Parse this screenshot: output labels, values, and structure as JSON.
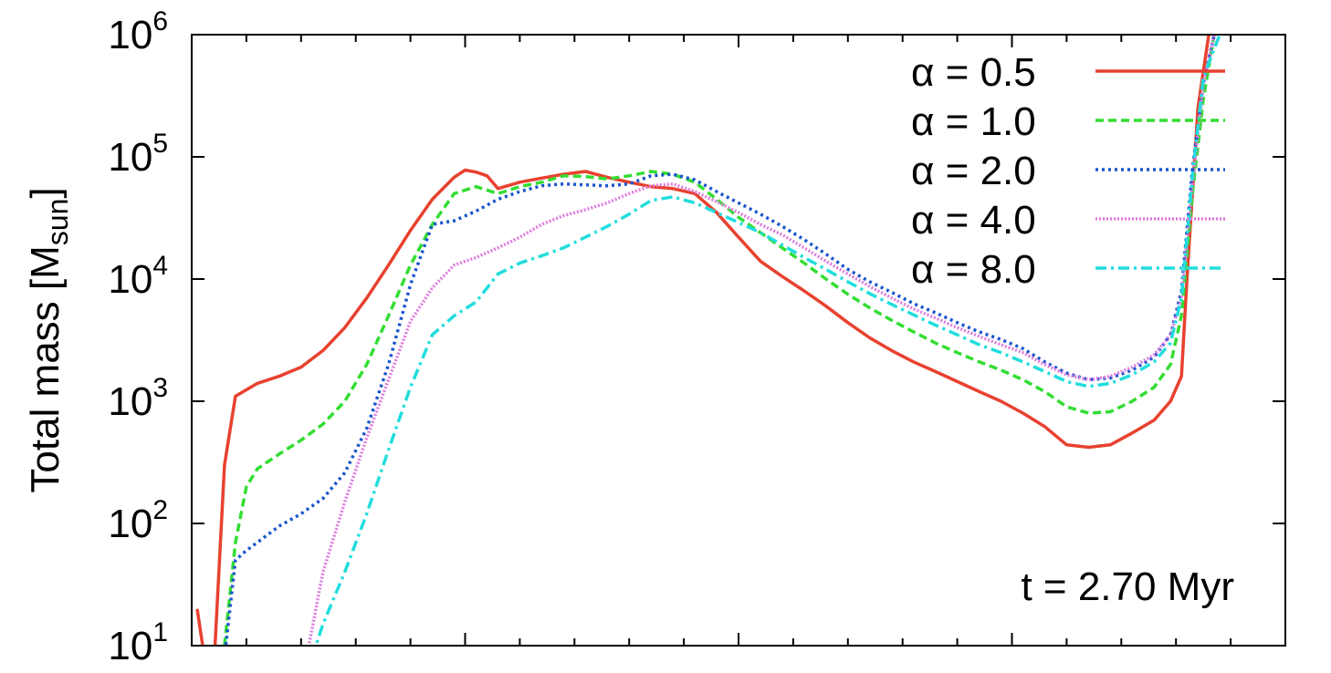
{
  "chart_data": {
    "type": "line",
    "title": "",
    "xlabel": "",
    "ylabel": {
      "main": "Total mass [M",
      "sub": "sun",
      "close": "]"
    },
    "yscale": "log",
    "ylim": [
      10,
      1000000
    ],
    "xlim": [
      0,
      10
    ],
    "grid": false,
    "legend_position": "top-right",
    "y_tick_labels": [
      {
        "value": 10,
        "base": "10",
        "exp": "1"
      },
      {
        "value": 100,
        "base": "10",
        "exp": "2"
      },
      {
        "value": 1000,
        "base": "10",
        "exp": "3"
      },
      {
        "value": 10000,
        "base": "10",
        "exp": "4"
      },
      {
        "value": 100000,
        "base": "10",
        "exp": "5"
      },
      {
        "value": 1000000,
        "base": "10",
        "exp": "6"
      }
    ],
    "x_major_ticks": [
      0,
      2.5,
      5,
      7.5,
      10
    ],
    "x_minor_ticks": [
      0.5,
      1,
      1.5,
      2,
      3,
      3.5,
      4,
      4.5,
      5.5,
      6,
      6.5,
      7,
      8,
      8.5,
      9,
      9.5
    ],
    "annotation": "t = 2.70 Myr",
    "series": [
      {
        "name": "α = 0.5",
        "color": "#e8412f",
        "dash": "solid",
        "points": [
          [
            0.05,
            20
          ],
          [
            0.1,
            10
          ],
          [
            0.2,
            6
          ],
          [
            0.3,
            300
          ],
          [
            0.4,
            1100
          ],
          [
            0.6,
            1400
          ],
          [
            0.8,
            1600
          ],
          [
            1.0,
            1900
          ],
          [
            1.2,
            2600
          ],
          [
            1.4,
            4000
          ],
          [
            1.6,
            7000
          ],
          [
            1.8,
            13000
          ],
          [
            2.0,
            25000
          ],
          [
            2.2,
            45000
          ],
          [
            2.4,
            68000
          ],
          [
            2.5,
            78000
          ],
          [
            2.6,
            75000
          ],
          [
            2.7,
            70000
          ],
          [
            2.8,
            55000
          ],
          [
            3.0,
            62000
          ],
          [
            3.2,
            67000
          ],
          [
            3.4,
            72000
          ],
          [
            3.6,
            76000
          ],
          [
            3.8,
            68000
          ],
          [
            4.0,
            62000
          ],
          [
            4.2,
            57000
          ],
          [
            4.4,
            55000
          ],
          [
            4.6,
            50000
          ],
          [
            4.8,
            35000
          ],
          [
            5.0,
            22000
          ],
          [
            5.2,
            14000
          ],
          [
            5.4,
            10500
          ],
          [
            5.6,
            8000
          ],
          [
            5.8,
            6000
          ],
          [
            6.0,
            4400
          ],
          [
            6.2,
            3300
          ],
          [
            6.4,
            2600
          ],
          [
            6.6,
            2100
          ],
          [
            6.8,
            1750
          ],
          [
            7.0,
            1450
          ],
          [
            7.2,
            1200
          ],
          [
            7.4,
            1000
          ],
          [
            7.6,
            800
          ],
          [
            7.8,
            620
          ],
          [
            8.0,
            440
          ],
          [
            8.2,
            420
          ],
          [
            8.4,
            440
          ],
          [
            8.6,
            550
          ],
          [
            8.8,
            700
          ],
          [
            8.95,
            1000
          ],
          [
            9.05,
            1600
          ],
          [
            9.1,
            10000
          ],
          [
            9.2,
            250000
          ],
          [
            9.3,
            1000000
          ]
        ]
      },
      {
        "name": "α = 1.0",
        "color": "#33dd33",
        "dash": "dashed",
        "points": [
          [
            0.3,
            10
          ],
          [
            0.4,
            70
          ],
          [
            0.5,
            200
          ],
          [
            0.6,
            280
          ],
          [
            0.8,
            370
          ],
          [
            1.0,
            480
          ],
          [
            1.2,
            650
          ],
          [
            1.4,
            1000
          ],
          [
            1.6,
            2000
          ],
          [
            1.8,
            5000
          ],
          [
            2.0,
            13000
          ],
          [
            2.2,
            28000
          ],
          [
            2.4,
            50000
          ],
          [
            2.6,
            57000
          ],
          [
            2.8,
            50000
          ],
          [
            3.0,
            57000
          ],
          [
            3.2,
            62000
          ],
          [
            3.4,
            70000
          ],
          [
            3.6,
            69000
          ],
          [
            3.8,
            66000
          ],
          [
            4.0,
            70000
          ],
          [
            4.2,
            76000
          ],
          [
            4.4,
            72000
          ],
          [
            4.6,
            62000
          ],
          [
            4.8,
            45000
          ],
          [
            5.0,
            32000
          ],
          [
            5.2,
            24000
          ],
          [
            5.4,
            18000
          ],
          [
            5.6,
            13500
          ],
          [
            5.8,
            10000
          ],
          [
            6.0,
            7500
          ],
          [
            6.2,
            5800
          ],
          [
            6.4,
            4600
          ],
          [
            6.6,
            3700
          ],
          [
            6.8,
            3000
          ],
          [
            7.0,
            2500
          ],
          [
            7.2,
            2100
          ],
          [
            7.4,
            1800
          ],
          [
            7.6,
            1500
          ],
          [
            7.8,
            1200
          ],
          [
            8.0,
            900
          ],
          [
            8.2,
            800
          ],
          [
            8.4,
            820
          ],
          [
            8.6,
            1000
          ],
          [
            8.8,
            1300
          ],
          [
            8.95,
            2000
          ],
          [
            9.05,
            5000
          ],
          [
            9.15,
            50000
          ],
          [
            9.25,
            300000
          ],
          [
            9.35,
            1000000
          ]
        ]
      },
      {
        "name": "α = 2.0",
        "color": "#1a55cc",
        "dash": "dotted",
        "points": [
          [
            0.3,
            8
          ],
          [
            0.4,
            50
          ],
          [
            0.5,
            60
          ],
          [
            0.6,
            70
          ],
          [
            0.8,
            95
          ],
          [
            1.0,
            120
          ],
          [
            1.2,
            160
          ],
          [
            1.4,
            260
          ],
          [
            1.6,
            600
          ],
          [
            1.8,
            2000
          ],
          [
            2.0,
            9000
          ],
          [
            2.2,
            28000
          ],
          [
            2.4,
            30000
          ],
          [
            2.6,
            36000
          ],
          [
            2.8,
            45000
          ],
          [
            3.0,
            52000
          ],
          [
            3.2,
            58000
          ],
          [
            3.4,
            60000
          ],
          [
            3.6,
            59000
          ],
          [
            3.8,
            58000
          ],
          [
            4.0,
            60000
          ],
          [
            4.2,
            70000
          ],
          [
            4.4,
            72000
          ],
          [
            4.6,
            65000
          ],
          [
            4.8,
            52000
          ],
          [
            5.0,
            42000
          ],
          [
            5.2,
            34000
          ],
          [
            5.4,
            27000
          ],
          [
            5.6,
            21000
          ],
          [
            5.8,
            16000
          ],
          [
            6.0,
            12000
          ],
          [
            6.2,
            9500
          ],
          [
            6.4,
            7800
          ],
          [
            6.6,
            6300
          ],
          [
            6.8,
            5300
          ],
          [
            7.0,
            4400
          ],
          [
            7.2,
            3700
          ],
          [
            7.4,
            3200
          ],
          [
            7.6,
            2700
          ],
          [
            7.8,
            2100
          ],
          [
            8.0,
            1700
          ],
          [
            8.2,
            1500
          ],
          [
            8.4,
            1550
          ],
          [
            8.6,
            1800
          ],
          [
            8.8,
            2300
          ],
          [
            8.95,
            3500
          ],
          [
            9.05,
            8000
          ],
          [
            9.15,
            80000
          ],
          [
            9.25,
            400000
          ],
          [
            9.35,
            1000000
          ]
        ]
      },
      {
        "name": "α = 4.0",
        "color": "#e07be0",
        "dash": "fine-dotted",
        "points": [
          [
            1.05,
            8
          ],
          [
            1.2,
            40
          ],
          [
            1.4,
            150
          ],
          [
            1.6,
            500
          ],
          [
            1.8,
            1500
          ],
          [
            2.0,
            4500
          ],
          [
            2.2,
            8500
          ],
          [
            2.4,
            13000
          ],
          [
            2.6,
            15000
          ],
          [
            2.8,
            18000
          ],
          [
            3.0,
            22000
          ],
          [
            3.2,
            28000
          ],
          [
            3.4,
            33000
          ],
          [
            3.6,
            37000
          ],
          [
            3.8,
            42000
          ],
          [
            4.0,
            50000
          ],
          [
            4.2,
            58000
          ],
          [
            4.4,
            60000
          ],
          [
            4.6,
            52000
          ],
          [
            4.8,
            43000
          ],
          [
            5.0,
            35000
          ],
          [
            5.2,
            28000
          ],
          [
            5.4,
            23000
          ],
          [
            5.6,
            18000
          ],
          [
            5.8,
            14000
          ],
          [
            6.0,
            11000
          ],
          [
            6.2,
            8700
          ],
          [
            6.4,
            7000
          ],
          [
            6.6,
            5700
          ],
          [
            6.8,
            4800
          ],
          [
            7.0,
            4000
          ],
          [
            7.2,
            3400
          ],
          [
            7.4,
            2900
          ],
          [
            7.6,
            2500
          ],
          [
            7.8,
            2000
          ],
          [
            8.0,
            1650
          ],
          [
            8.2,
            1500
          ],
          [
            8.4,
            1600
          ],
          [
            8.6,
            1900
          ],
          [
            8.8,
            2400
          ],
          [
            8.95,
            3500
          ],
          [
            9.05,
            7000
          ],
          [
            9.15,
            60000
          ],
          [
            9.25,
            400000
          ],
          [
            9.35,
            1000000
          ]
        ]
      },
      {
        "name": "α = 8.0",
        "color": "#22dddd",
        "dash": "dash-dot",
        "points": [
          [
            1.1,
            8
          ],
          [
            1.2,
            15
          ],
          [
            1.4,
            40
          ],
          [
            1.6,
            120
          ],
          [
            1.8,
            400
          ],
          [
            2.0,
            1300
          ],
          [
            2.2,
            3500
          ],
          [
            2.4,
            5000
          ],
          [
            2.6,
            6500
          ],
          [
            2.8,
            11000
          ],
          [
            3.0,
            13500
          ],
          [
            3.2,
            15500
          ],
          [
            3.4,
            18000
          ],
          [
            3.6,
            22000
          ],
          [
            3.8,
            27000
          ],
          [
            4.0,
            34000
          ],
          [
            4.2,
            44000
          ],
          [
            4.4,
            47000
          ],
          [
            4.6,
            42000
          ],
          [
            4.8,
            35000
          ],
          [
            5.0,
            29000
          ],
          [
            5.2,
            24000
          ],
          [
            5.4,
            19000
          ],
          [
            5.6,
            15000
          ],
          [
            5.8,
            12000
          ],
          [
            6.0,
            9500
          ],
          [
            6.2,
            7600
          ],
          [
            6.4,
            6200
          ],
          [
            6.6,
            5100
          ],
          [
            6.8,
            4200
          ],
          [
            7.0,
            3500
          ],
          [
            7.2,
            2900
          ],
          [
            7.4,
            2500
          ],
          [
            7.6,
            2100
          ],
          [
            7.8,
            1750
          ],
          [
            8.0,
            1450
          ],
          [
            8.2,
            1320
          ],
          [
            8.4,
            1400
          ],
          [
            8.6,
            1650
          ],
          [
            8.8,
            2100
          ],
          [
            8.95,
            3000
          ],
          [
            9.05,
            7000
          ],
          [
            9.15,
            70000
          ],
          [
            9.25,
            450000
          ],
          [
            9.4,
            1000000
          ]
        ]
      }
    ]
  }
}
